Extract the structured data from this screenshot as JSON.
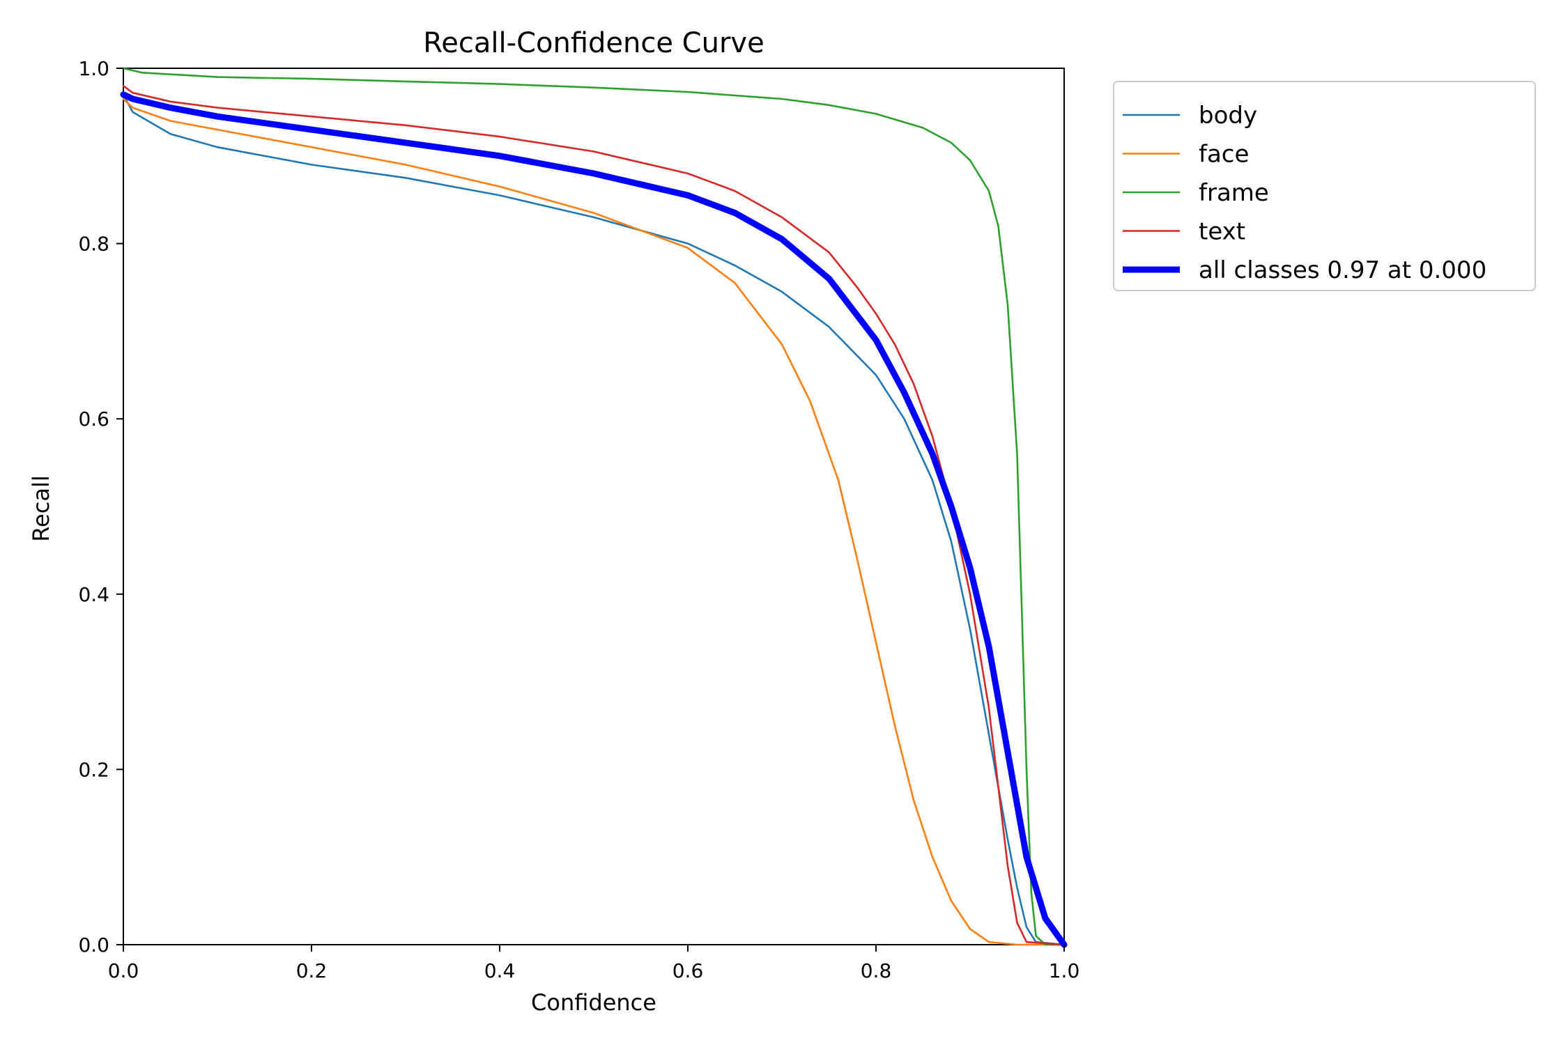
{
  "chart_data": {
    "type": "line",
    "title": "Recall-Confidence Curve",
    "xlabel": "Confidence",
    "ylabel": "Recall",
    "xlim": [
      0.0,
      1.0
    ],
    "ylim": [
      0.0,
      1.0
    ],
    "xticks": [
      "0.0",
      "0.2",
      "0.4",
      "0.6",
      "0.8",
      "1.0"
    ],
    "yticks": [
      "0.0",
      "0.2",
      "0.4",
      "0.6",
      "0.8",
      "1.0"
    ],
    "grid": false,
    "legend_position": "outside-top-right",
    "series": [
      {
        "name": "body",
        "color": "#1f77b4",
        "width": "thin",
        "points": [
          [
            0.0,
            0.97
          ],
          [
            0.01,
            0.95
          ],
          [
            0.05,
            0.925
          ],
          [
            0.1,
            0.91
          ],
          [
            0.2,
            0.89
          ],
          [
            0.3,
            0.875
          ],
          [
            0.4,
            0.855
          ],
          [
            0.5,
            0.83
          ],
          [
            0.6,
            0.8
          ],
          [
            0.65,
            0.775
          ],
          [
            0.7,
            0.745
          ],
          [
            0.75,
            0.705
          ],
          [
            0.8,
            0.65
          ],
          [
            0.83,
            0.6
          ],
          [
            0.86,
            0.53
          ],
          [
            0.88,
            0.46
          ],
          [
            0.9,
            0.36
          ],
          [
            0.92,
            0.24
          ],
          [
            0.94,
            0.12
          ],
          [
            0.95,
            0.065
          ],
          [
            0.96,
            0.02
          ],
          [
            0.97,
            0.003
          ],
          [
            1.0,
            0.0
          ]
        ]
      },
      {
        "name": "face",
        "color": "#ff7f0e",
        "width": "thin",
        "points": [
          [
            0.0,
            0.965
          ],
          [
            0.01,
            0.955
          ],
          [
            0.05,
            0.94
          ],
          [
            0.1,
            0.93
          ],
          [
            0.2,
            0.91
          ],
          [
            0.3,
            0.89
          ],
          [
            0.4,
            0.865
          ],
          [
            0.5,
            0.835
          ],
          [
            0.55,
            0.815
          ],
          [
            0.6,
            0.795
          ],
          [
            0.65,
            0.755
          ],
          [
            0.7,
            0.685
          ],
          [
            0.73,
            0.62
          ],
          [
            0.76,
            0.53
          ],
          [
            0.78,
            0.44
          ],
          [
            0.8,
            0.345
          ],
          [
            0.82,
            0.25
          ],
          [
            0.84,
            0.165
          ],
          [
            0.86,
            0.1
          ],
          [
            0.88,
            0.05
          ],
          [
            0.9,
            0.018
          ],
          [
            0.92,
            0.003
          ],
          [
            0.95,
            0.0
          ],
          [
            1.0,
            0.0
          ]
        ]
      },
      {
        "name": "frame",
        "color": "#2ca02c",
        "width": "thin",
        "points": [
          [
            0.0,
            1.0
          ],
          [
            0.02,
            0.995
          ],
          [
            0.1,
            0.99
          ],
          [
            0.2,
            0.988
          ],
          [
            0.3,
            0.985
          ],
          [
            0.4,
            0.982
          ],
          [
            0.5,
            0.978
          ],
          [
            0.6,
            0.973
          ],
          [
            0.7,
            0.965
          ],
          [
            0.75,
            0.958
          ],
          [
            0.8,
            0.948
          ],
          [
            0.85,
            0.932
          ],
          [
            0.88,
            0.915
          ],
          [
            0.9,
            0.895
          ],
          [
            0.92,
            0.86
          ],
          [
            0.93,
            0.82
          ],
          [
            0.94,
            0.73
          ],
          [
            0.95,
            0.56
          ],
          [
            0.955,
            0.38
          ],
          [
            0.96,
            0.2
          ],
          [
            0.965,
            0.06
          ],
          [
            0.97,
            0.01
          ],
          [
            0.98,
            0.0
          ],
          [
            1.0,
            0.0
          ]
        ]
      },
      {
        "name": "text",
        "color": "#d62728",
        "width": "thin",
        "points": [
          [
            0.0,
            0.98
          ],
          [
            0.01,
            0.972
          ],
          [
            0.05,
            0.962
          ],
          [
            0.1,
            0.955
          ],
          [
            0.2,
            0.945
          ],
          [
            0.3,
            0.935
          ],
          [
            0.4,
            0.922
          ],
          [
            0.5,
            0.905
          ],
          [
            0.6,
            0.88
          ],
          [
            0.65,
            0.86
          ],
          [
            0.7,
            0.83
          ],
          [
            0.75,
            0.79
          ],
          [
            0.78,
            0.75
          ],
          [
            0.8,
            0.72
          ],
          [
            0.82,
            0.685
          ],
          [
            0.84,
            0.64
          ],
          [
            0.86,
            0.58
          ],
          [
            0.88,
            0.5
          ],
          [
            0.9,
            0.4
          ],
          [
            0.92,
            0.27
          ],
          [
            0.93,
            0.18
          ],
          [
            0.94,
            0.09
          ],
          [
            0.95,
            0.025
          ],
          [
            0.96,
            0.003
          ],
          [
            1.0,
            0.0
          ]
        ]
      },
      {
        "name": "all classes 0.97 at 0.000",
        "color": "#0000ff",
        "width": "thick",
        "points": [
          [
            0.0,
            0.97
          ],
          [
            0.01,
            0.965
          ],
          [
            0.05,
            0.955
          ],
          [
            0.1,
            0.945
          ],
          [
            0.2,
            0.93
          ],
          [
            0.3,
            0.915
          ],
          [
            0.4,
            0.9
          ],
          [
            0.5,
            0.88
          ],
          [
            0.6,
            0.855
          ],
          [
            0.65,
            0.835
          ],
          [
            0.7,
            0.805
          ],
          [
            0.75,
            0.76
          ],
          [
            0.8,
            0.69
          ],
          [
            0.83,
            0.63
          ],
          [
            0.86,
            0.56
          ],
          [
            0.88,
            0.5
          ],
          [
            0.9,
            0.43
          ],
          [
            0.92,
            0.34
          ],
          [
            0.94,
            0.22
          ],
          [
            0.96,
            0.1
          ],
          [
            0.98,
            0.03
          ],
          [
            1.0,
            0.0
          ]
        ]
      }
    ]
  }
}
